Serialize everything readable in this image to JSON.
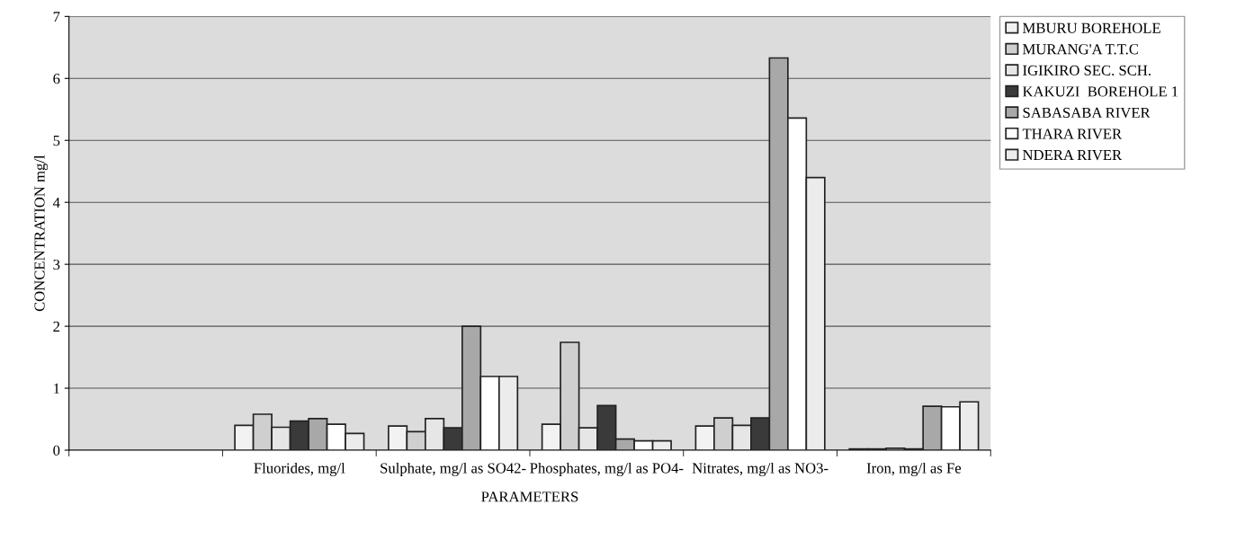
{
  "chart_data": {
    "type": "bar",
    "xlabel": "PARAMETERS",
    "ylabel": "CONCENTRATION mg/l",
    "categories": [
      null,
      "Fluorides, mg/l",
      "Sulphate, mg/l as SO42-",
      "Phosphates, mg/l as PO4-",
      "Nitrates, mg/l as NO3-",
      "Iron, mg/l as Fe"
    ],
    "series": [
      {
        "name": "MBURU BOREHOLE",
        "color": "#f2f2f2",
        "values": [
          null,
          0.4,
          0.39,
          0.42,
          0.39,
          0.02
        ]
      },
      {
        "name": "MURANG'A T.T.C",
        "color": "#cfcfcf",
        "values": [
          null,
          0.58,
          0.3,
          1.74,
          0.52,
          0.02
        ]
      },
      {
        "name": "IGIKIRO SEC. SCH.",
        "color": "#e6e6e6",
        "values": [
          null,
          0.37,
          0.51,
          0.36,
          0.4,
          0.03
        ]
      },
      {
        "name": "KAKUZI  BOREHOLE 1",
        "color": "#3a3a3a",
        "values": [
          null,
          0.47,
          0.36,
          0.72,
          0.52,
          0.02
        ]
      },
      {
        "name": "SABASABA RIVER",
        "color": "#a8a8a8",
        "values": [
          null,
          0.51,
          2.0,
          0.18,
          6.33,
          0.71
        ]
      },
      {
        "name": "THARA RIVER",
        "color": "#ffffff",
        "values": [
          null,
          0.42,
          1.19,
          0.15,
          5.36,
          0.7
        ]
      },
      {
        "name": "NDERA RIVER",
        "color": "#ececec",
        "values": [
          null,
          0.27,
          1.19,
          0.15,
          4.4,
          0.78
        ]
      }
    ],
    "ylim": [
      0,
      7
    ],
    "yticks": [
      0,
      1,
      2,
      3,
      4,
      5,
      6,
      7
    ],
    "grid": "y",
    "legend": "top right"
  }
}
